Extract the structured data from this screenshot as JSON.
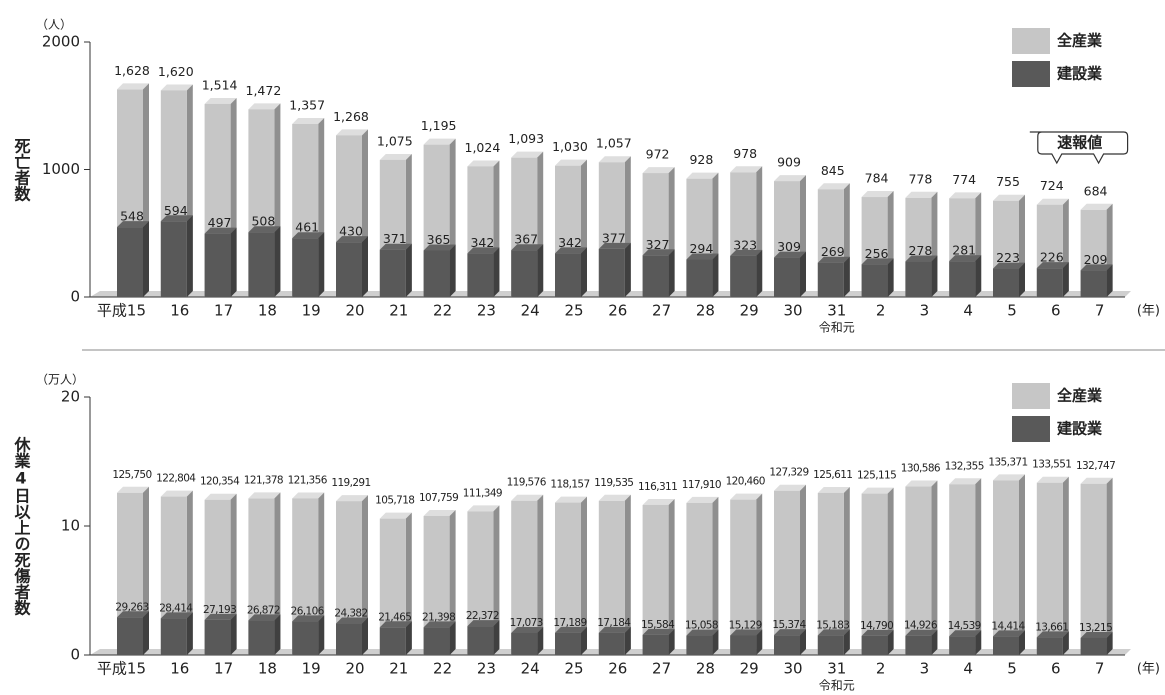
{
  "chart_data": [
    {
      "type": "bar",
      "y_unit": "（人）",
      "y_label": "死亡者数",
      "x_unit": "(年)",
      "annotations": [
        "令和元",
        "速報値"
      ],
      "categories": [
        "平成15",
        "16",
        "17",
        "18",
        "19",
        "20",
        "21",
        "22",
        "23",
        "24",
        "25",
        "26",
        "27",
        "28",
        "29",
        "30",
        "31",
        "2",
        "3",
        "4",
        "5",
        "6",
        "7"
      ],
      "series": [
        {
          "name": "全産業",
          "color": "#c6c6c6",
          "values": [
            1628,
            1620,
            1514,
            1472,
            1357,
            1268,
            1075,
            1195,
            1024,
            1093,
            1030,
            1057,
            972,
            928,
            978,
            909,
            845,
            784,
            778,
            774,
            755,
            724,
            684
          ],
          "value_labels": [
            "1,628",
            "1,620",
            "1,514",
            "1,472",
            "1,357",
            "1,268",
            "1,075",
            "1,195",
            "1,024",
            "1,093",
            "1,030",
            "1,057",
            "972",
            "928",
            "978",
            "909",
            "845",
            "784",
            "778",
            "774",
            "755",
            "724",
            "684"
          ]
        },
        {
          "name": "建設業",
          "color": "#595959",
          "values": [
            548,
            594,
            497,
            508,
            461,
            430,
            371,
            365,
            342,
            367,
            342,
            377,
            327,
            294,
            323,
            309,
            269,
            256,
            278,
            281,
            223,
            226,
            209
          ]
        }
      ],
      "ylim": [
        0,
        2000
      ],
      "yticks": [
        0,
        1000,
        2000
      ],
      "legend": "top-right"
    },
    {
      "type": "bar",
      "y_unit": "（万人）",
      "y_label": "休業4日以上の死傷者数",
      "x_unit": "(年)",
      "annotations": [
        "令和元"
      ],
      "categories": [
        "平成15",
        "16",
        "17",
        "18",
        "19",
        "20",
        "21",
        "22",
        "23",
        "24",
        "25",
        "26",
        "27",
        "28",
        "29",
        "30",
        "31",
        "2",
        "3",
        "4",
        "5",
        "6",
        "7"
      ],
      "series": [
        {
          "name": "全産業",
          "color": "#c6c6c6",
          "values": [
            12.575,
            12.2804,
            12.0354,
            12.1378,
            12.1356,
            11.9291,
            10.5718,
            10.7759,
            11.1349,
            11.9576,
            11.8157,
            11.9535,
            11.6311,
            11.791,
            12.046,
            12.7329,
            12.5611,
            12.5115,
            13.0586,
            13.2355,
            13.5371,
            13.3551,
            13.2747
          ],
          "value_labels": [
            "125,750",
            "122,804",
            "120,354",
            "121,378",
            "121,356",
            "119,291",
            "105,718",
            "107,759",
            "111,349",
            "119,576",
            "118,157",
            "119,535",
            "116,311",
            "117,910",
            "120,460",
            "127,329",
            "125,611",
            "125,115",
            "130,586",
            "132,355",
            "135,371",
            "133,551",
            "132,747"
          ]
        },
        {
          "name": "建設業",
          "color": "#595959",
          "values": [
            2.9263,
            2.8414,
            2.7193,
            2.6872,
            2.6106,
            2.4382,
            2.1465,
            2.1398,
            2.2372,
            1.7073,
            1.7189,
            1.7184,
            1.5584,
            1.5058,
            1.5129,
            1.5374,
            1.5183,
            1.479,
            1.4926,
            1.4539,
            1.4414,
            1.3661,
            1.3215
          ],
          "value_labels": [
            "29,263",
            "28,414",
            "27,193",
            "26,872",
            "26,106",
            "24,382",
            "21,465",
            "21,398",
            "22,372",
            "17,073",
            "17,189",
            "17,184",
            "15,584",
            "15,058",
            "15,129",
            "15,374",
            "15,183",
            "14,790",
            "14,926",
            "14,539",
            "14,414",
            "13,661",
            "13,215"
          ]
        }
      ],
      "ylim": [
        0,
        20
      ],
      "yticks": [
        0,
        10,
        20
      ],
      "legend": "top-right"
    }
  ]
}
